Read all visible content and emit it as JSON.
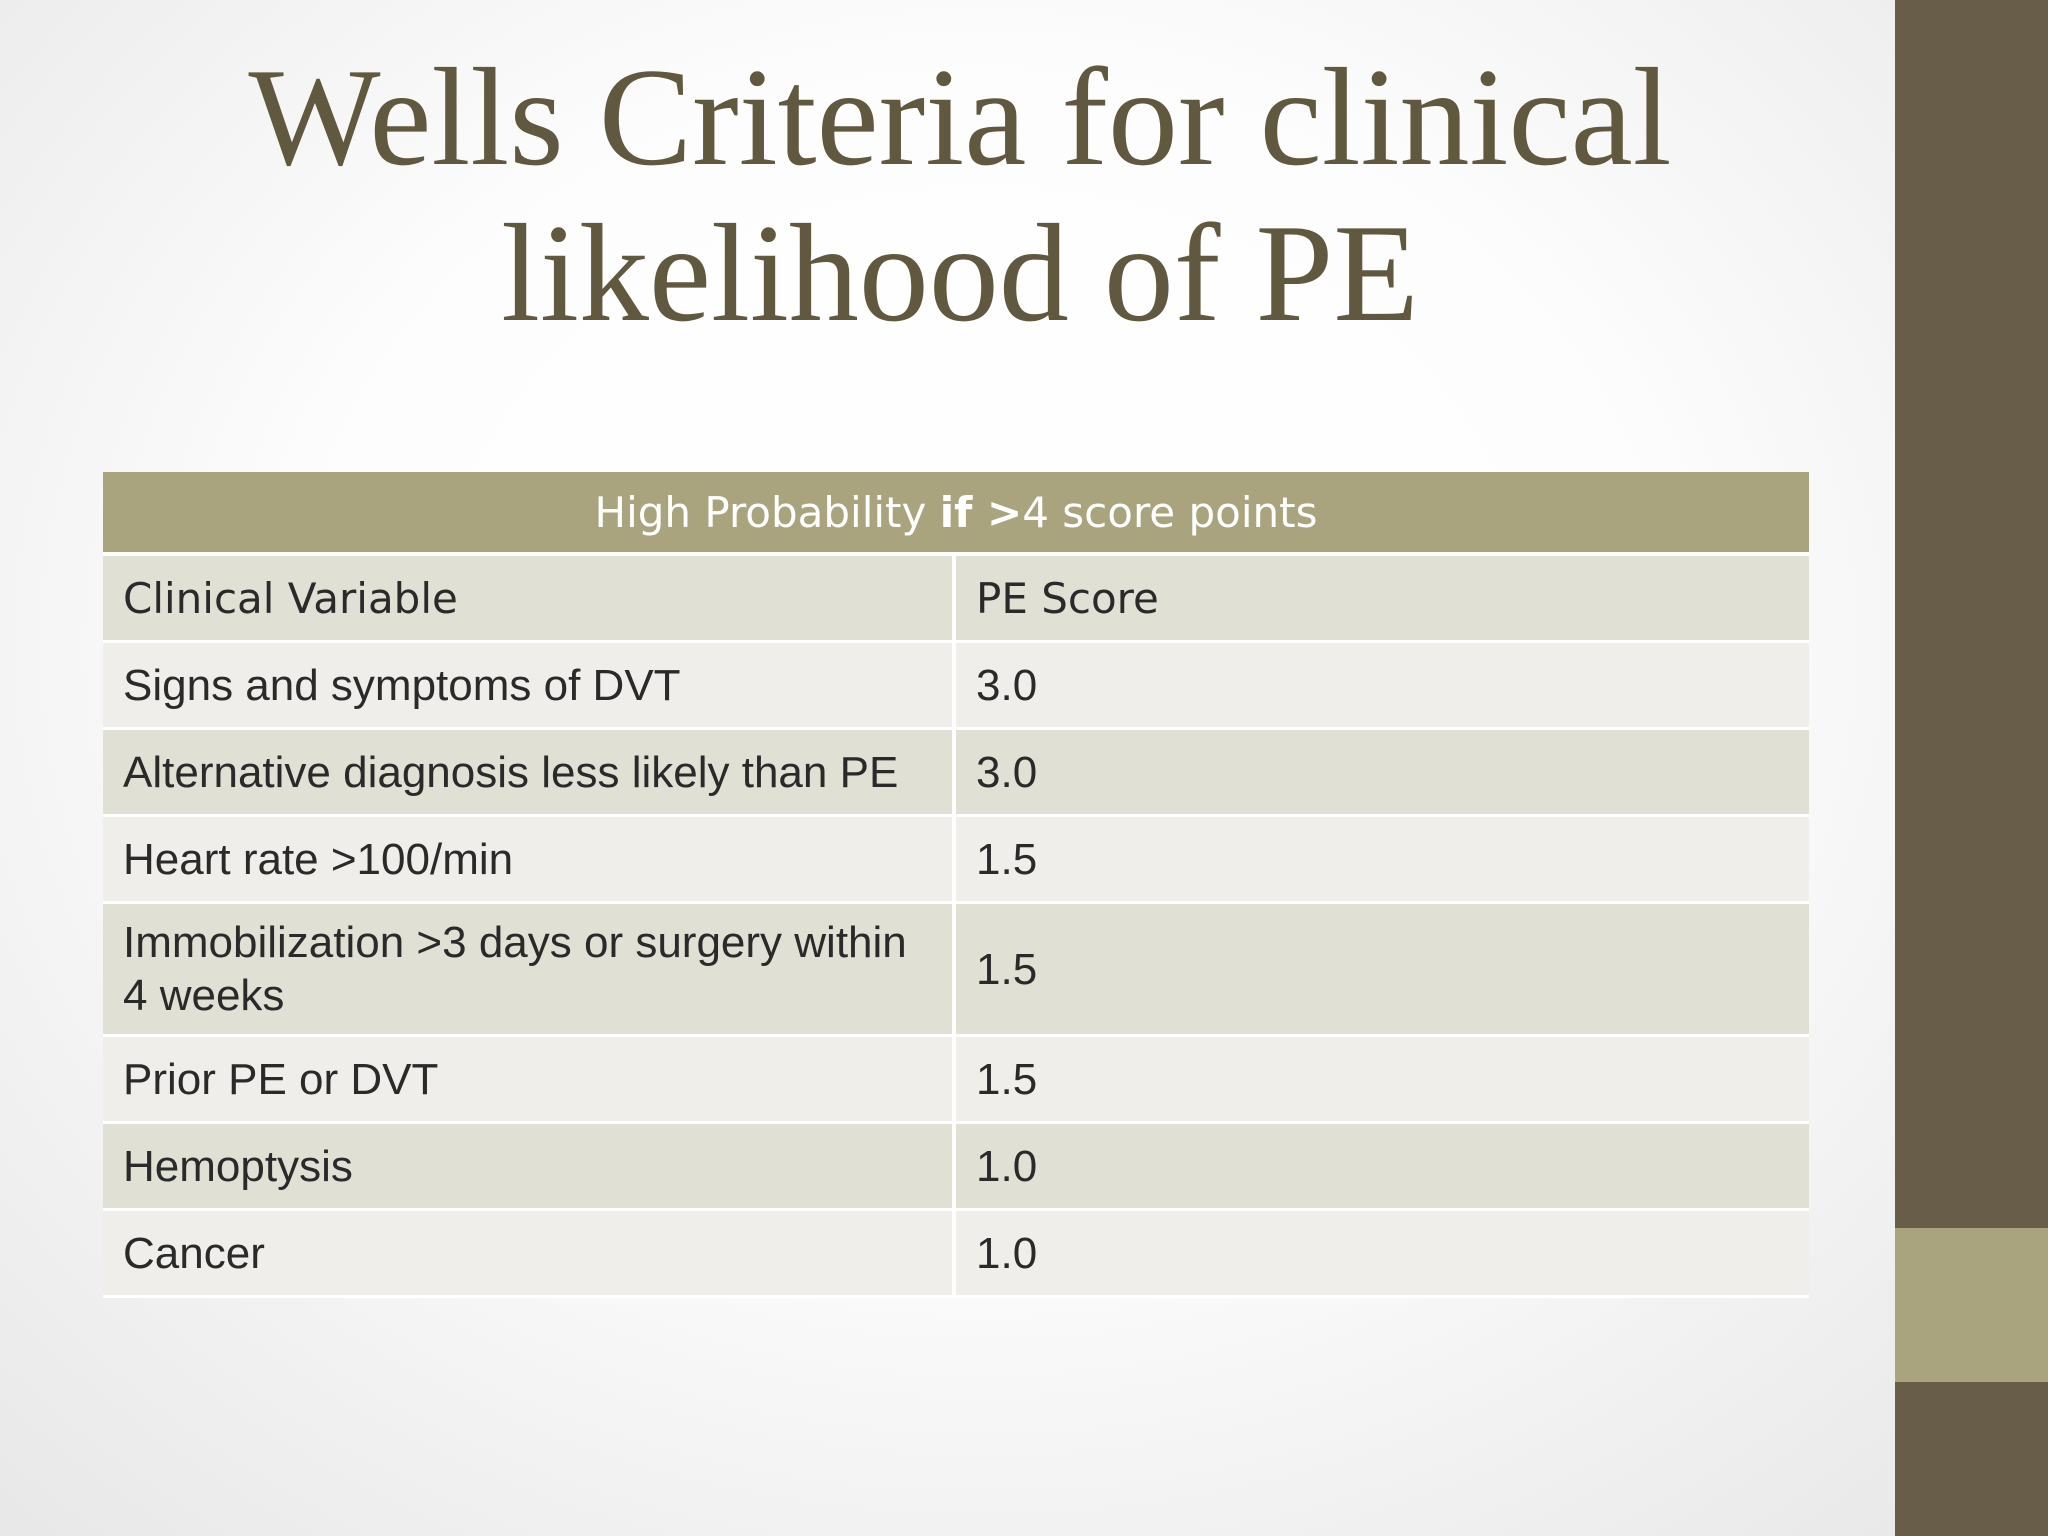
{
  "slide": {
    "title_line1": "Wells Criteria for clinical",
    "title_line2": "likelihood of PE"
  },
  "table": {
    "banner_prefix": "High Probability ",
    "banner_bold": "if >",
    "banner_suffix": "4 score points",
    "header": {
      "variable": "Clinical Variable",
      "score": "PE Score"
    },
    "rows": [
      {
        "variable": "Signs and symptoms of DVT",
        "score": "3.0"
      },
      {
        "variable": "Alternative diagnosis less likely than PE",
        "score": "3.0"
      },
      {
        "variable": "Heart rate >100/min",
        "score": "1.5"
      },
      {
        "variable": "Immobilization >3 days or surgery within 4 weeks",
        "score": "1.5"
      },
      {
        "variable": "Prior PE or DVT",
        "score": "1.5"
      },
      {
        "variable": "Hemoptysis",
        "score": "1.0"
      },
      {
        "variable": "Cancer",
        "score": "1.0"
      }
    ]
  },
  "colors": {
    "title_text": "#60583f",
    "side_bar": "#675d49",
    "side_accent": "#a9a47e",
    "banner_fill": "#a9a47e",
    "row_dark": "#e0e0d5",
    "row_light": "#efeeeb"
  }
}
